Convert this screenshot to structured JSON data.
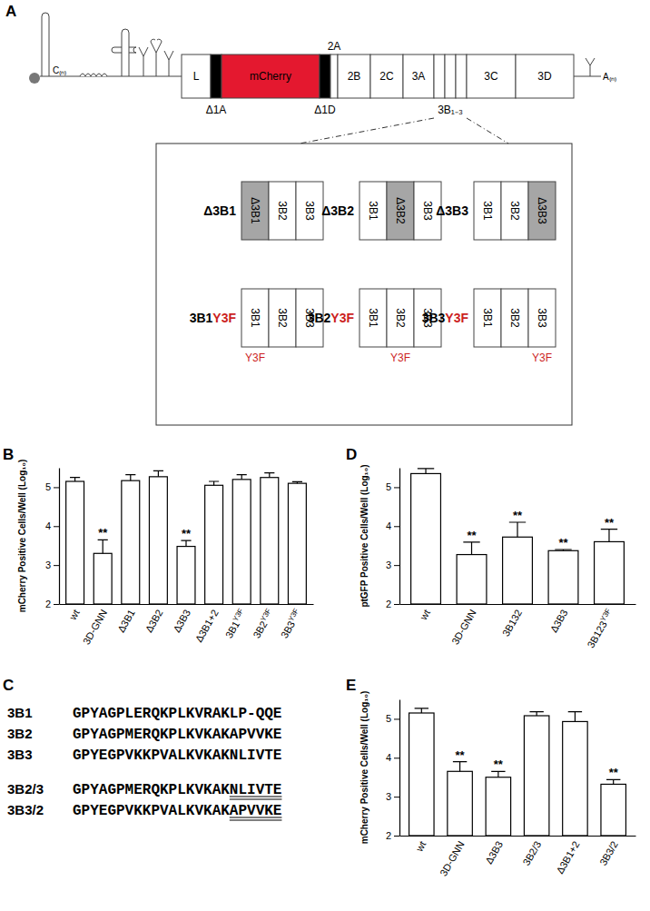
{
  "panel_labels": [
    "A",
    "B",
    "C",
    "D",
    "E"
  ],
  "diagram": {
    "five_prime": "C₍ₙ₎",
    "three_prime": "A₍ₙ₎",
    "genome_segments": [
      "L",
      "Δ1A",
      "mCherry",
      "Δ1D",
      "2A",
      "2B",
      "2C",
      "3A",
      "3B₁₋₃",
      "3C",
      "3D"
    ],
    "inset": {
      "rows": [
        [
          {
            "label": "Δ3B1",
            "segments": [
              "Δ3B1",
              "3B2",
              "3B3"
            ]
          },
          {
            "label": "Δ3B2",
            "segments": [
              "3B1",
              "Δ3B2",
              "3B3"
            ]
          },
          {
            "label": "Δ3B3",
            "segments": [
              "3B1",
              "3B2",
              "Δ3B3"
            ]
          }
        ],
        [
          {
            "label": "3B1",
            "mutation": "Y3F",
            "segments": [
              "3B1",
              "3B2",
              "3B3"
            ]
          },
          {
            "label": "3B2",
            "mutation": "Y3F",
            "segments": [
              "3B1",
              "3B2",
              "3B3"
            ]
          },
          {
            "label": "3B3",
            "mutation": "Y3F",
            "segments": [
              "3B1",
              "3B2",
              "3B3"
            ]
          }
        ]
      ]
    }
  },
  "sequences": [
    {
      "name": "3B1",
      "sequence": "GPYAGPLERQKPLKVRAKLP-QQE"
    },
    {
      "name": "3B2",
      "sequence": "GPYAGPMERQKPLKVKAKAPVVKE"
    },
    {
      "name": "3B3",
      "sequence": "GPYEGPVKKPVALKVKAKNLIVTE"
    },
    {
      "name": "3B2/3",
      "sequence": "GPYAGPMERQKPLKVKAK",
      "underlined": "NLIVTE"
    },
    {
      "name": "3B3/2",
      "sequence": "GPYEGPVKKPVALKVKAK",
      "underlined": "APVVKE"
    }
  ],
  "chart_data": [
    {
      "type": "bar",
      "y_label": "mCherry  Positive Cells/Well (Log₁₀)",
      "categories": [
        "wt",
        "3D-GNN",
        "Δ3B1",
        "Δ3B2",
        "Δ3B3",
        "Δ3B1+2",
        "3B1Y3F",
        "3B2Y3F",
        "3B3Y3F"
      ],
      "category_superscripts": [
        null,
        null,
        null,
        null,
        null,
        null,
        "Y3F",
        "Y3F",
        "Y3F"
      ],
      "values": [
        5.15,
        3.3,
        5.17,
        5.27,
        3.48,
        5.05,
        5.2,
        5.25,
        5.1
      ],
      "errors": [
        0.1,
        0.35,
        0.15,
        0.15,
        0.15,
        0.1,
        0.12,
        0.12,
        0.04
      ],
      "significance": [
        null,
        "**",
        null,
        null,
        "**",
        null,
        null,
        null,
        null
      ],
      "color": "#ffffff",
      "ylim": [
        2,
        5.5
      ],
      "yticks": [
        2,
        3,
        4,
        5
      ]
    },
    {
      "type": "bar",
      "y_label": "ptGFP Positive Cells/Well (Log₁₀)",
      "categories": [
        "wt",
        "3D-GNN",
        "3B132",
        "Δ3B3",
        "3B123Y3F"
      ],
      "category_superscripts": [
        null,
        null,
        null,
        null,
        "Y3F"
      ],
      "values": [
        5.35,
        3.27,
        3.72,
        3.37,
        3.6
      ],
      "errors": [
        0.13,
        0.32,
        0.38,
        0.03,
        0.32
      ],
      "significance": [
        null,
        "**",
        "**",
        "**",
        "**"
      ],
      "color": "#ffffff",
      "ylim": [
        2,
        5.5
      ],
      "yticks": [
        2,
        3,
        4,
        5
      ]
    },
    {
      "type": "bar",
      "y_label": "mCherry Positive Cells/Well (Log₁₀)",
      "categories": [
        "wt",
        "3D-GNN",
        "Δ3B3",
        "3B2/3",
        "Δ3B1+2",
        "3B3/2"
      ],
      "values": [
        5.15,
        3.65,
        3.5,
        5.08,
        4.93,
        3.32
      ],
      "errors": [
        0.12,
        0.25,
        0.15,
        0.1,
        0.25,
        0.12
      ],
      "significance": [
        null,
        "**",
        "**",
        null,
        null,
        "**"
      ],
      "color": "#ffffff",
      "ylim": [
        2,
        5.5
      ],
      "yticks": [
        2,
        3,
        4,
        5
      ]
    }
  ]
}
